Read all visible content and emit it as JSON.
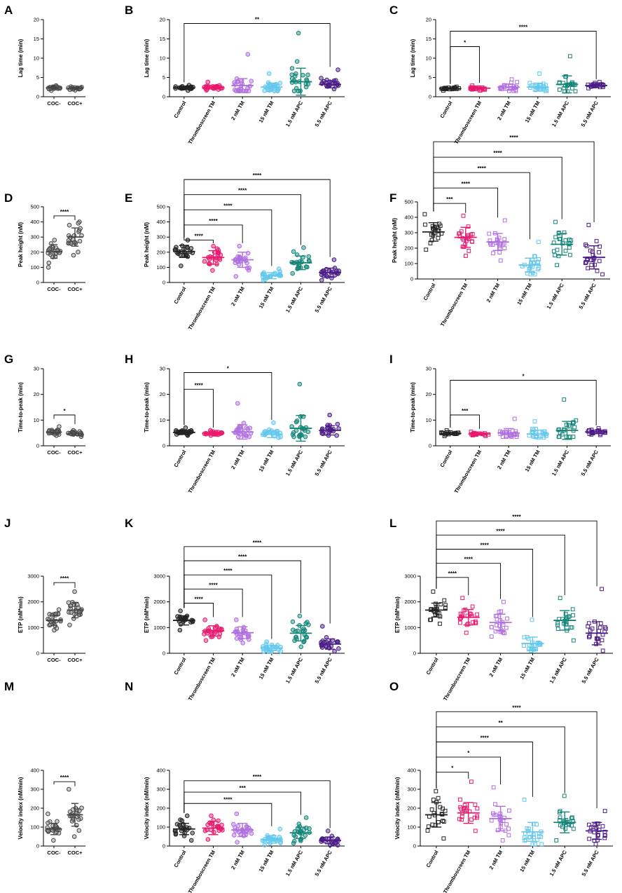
{
  "colors": {
    "control": "#222222",
    "thromboscreen_tm": "#e8196e",
    "tm_2nm": "#b06ee0",
    "tm_15nm": "#63c8ec",
    "apc_1_5nm": "#138577",
    "apc_5_5nm": "#4b1c86",
    "coc": "#444444",
    "coc_fill": "#8c8c8c"
  },
  "chart_data": [
    {
      "id": "A",
      "letter": "A",
      "type": "scatter",
      "panel_kind": "coc",
      "marker": "circle",
      "ylabel": "Lag time (min)",
      "ylim": [
        0,
        20
      ],
      "yticks": [
        0,
        5,
        10,
        15,
        20
      ],
      "yticklabels": [
        "0",
        "5",
        "10",
        "15",
        "20"
      ],
      "categories": [
        "COC-",
        "COC+"
      ],
      "groups": [
        {
          "mean": 2.3,
          "sd": 0.3,
          "min": 1.6,
          "max": 2.9
        },
        {
          "mean": 2.2,
          "sd": 0.25,
          "min": 1.7,
          "max": 2.6
        }
      ],
      "brackets": []
    },
    {
      "id": "B",
      "letter": "B",
      "type": "scatter",
      "panel_kind": "treat",
      "marker": "circle",
      "ylabel": "Lag time (min)",
      "ylim": [
        0,
        20
      ],
      "yticks": [
        0,
        5,
        10,
        15,
        20
      ],
      "yticklabels": [
        "0",
        "5",
        "10",
        "15",
        "20"
      ],
      "categories": [
        "Control",
        "Thromboscreen TM",
        "2 nM TM",
        "15 nM TM",
        "1.5 nM APC",
        "5.5 nM APC"
      ],
      "groups": [
        {
          "mean": 2.3,
          "sd": 0.3,
          "min": 1.6,
          "max": 3.0
        },
        {
          "mean": 2.4,
          "sd": 0.4,
          "min": 1.7,
          "max": 3.8
        },
        {
          "mean": 2.9,
          "sd": 1.8,
          "min": 1.5,
          "max": 11.0
        },
        {
          "mean": 2.5,
          "sd": 1.0,
          "min": 1.5,
          "max": 6.0
        },
        {
          "mean": 3.9,
          "sd": 3.5,
          "min": 1.5,
          "max": 16.5
        },
        {
          "mean": 3.2,
          "sd": 0.9,
          "min": 2.0,
          "max": 7.0
        }
      ],
      "brackets": [
        {
          "to": 5,
          "label": "**",
          "y": 19
        }
      ]
    },
    {
      "id": "C",
      "letter": "C",
      "type": "scatter",
      "panel_kind": "treat",
      "marker": "square",
      "ylabel": "Lag time (min)",
      "ylim": [
        0,
        20
      ],
      "yticks": [
        0,
        5,
        10,
        15,
        20
      ],
      "yticklabels": [
        "0",
        "5",
        "10",
        "15",
        "20"
      ],
      "categories": [
        "Control",
        "Thromboscreen TM",
        "2 nM TM",
        "15 nM TM",
        "1.5 nM APC",
        "5.5 nM APC"
      ],
      "groups": [
        {
          "mean": 2.1,
          "sd": 0.2,
          "min": 1.6,
          "max": 2.6
        },
        {
          "mean": 2.2,
          "sd": 0.3,
          "min": 1.6,
          "max": 2.9
        },
        {
          "mean": 2.5,
          "sd": 0.8,
          "min": 1.5,
          "max": 4.5
        },
        {
          "mean": 2.5,
          "sd": 1.0,
          "min": 1.5,
          "max": 6.0
        },
        {
          "mean": 3.2,
          "sd": 2.2,
          "min": 1.4,
          "max": 10.5
        },
        {
          "mean": 2.9,
          "sd": 0.4,
          "min": 2.2,
          "max": 3.8
        }
      ],
      "brackets": [
        {
          "to": 1,
          "label": "*",
          "y": 13
        },
        {
          "to": 5,
          "label": "****",
          "y": 17
        }
      ]
    },
    {
      "id": "D",
      "letter": "D",
      "type": "scatter",
      "panel_kind": "coc",
      "marker": "circle",
      "ylabel": "Peak height (nM)",
      "ylim": [
        0,
        500
      ],
      "yticks": [
        0,
        100,
        200,
        300,
        400,
        500
      ],
      "yticklabels": [
        "0",
        "100",
        "200",
        "300",
        "400",
        "500"
      ],
      "categories": [
        "COC-",
        "COC+"
      ],
      "groups": [
        {
          "mean": 205,
          "sd": 45,
          "min": 100,
          "max": 280
        },
        {
          "mean": 300,
          "sd": 60,
          "min": 180,
          "max": 400
        }
      ],
      "brackets": [
        {
          "from": 0,
          "to": 1,
          "label": "****",
          "y": 440
        }
      ]
    },
    {
      "id": "E",
      "letter": "E",
      "type": "scatter",
      "panel_kind": "treat",
      "marker": "circle",
      "ylabel": "Peak height (nM)",
      "ylim": [
        0,
        500
      ],
      "yticks": [
        0,
        100,
        200,
        300,
        400,
        500
      ],
      "yticklabels": [
        "0",
        "100",
        "200",
        "300",
        "400",
        "500"
      ],
      "categories": [
        "Control",
        "Thromboscreen TM",
        "2 nM TM",
        "15 nM TM",
        "1.5 nM APC",
        "5.5 nM APC"
      ],
      "groups": [
        {
          "mean": 205,
          "sd": 40,
          "min": 110,
          "max": 280
        },
        {
          "mean": 165,
          "sd": 45,
          "min": 80,
          "max": 240
        },
        {
          "mean": 150,
          "sd": 50,
          "min": 40,
          "max": 240
        },
        {
          "mean": 45,
          "sd": 20,
          "min": 15,
          "max": 90
        },
        {
          "mean": 130,
          "sd": 45,
          "min": 60,
          "max": 230
        },
        {
          "mean": 65,
          "sd": 30,
          "min": 15,
          "max": 150
        }
      ],
      "brackets": [
        {
          "to": 1,
          "label": "****",
          "y": 280
        },
        {
          "to": 2,
          "label": "****",
          "y": 380
        },
        {
          "to": 3,
          "label": "****",
          "y": 480
        },
        {
          "to": 4,
          "label": "****",
          "y": 580
        },
        {
          "to": 5,
          "label": "****",
          "y": 680
        }
      ]
    },
    {
      "id": "F",
      "letter": "F",
      "type": "scatter",
      "panel_kind": "treat",
      "marker": "square",
      "ylabel": "Peak height (nM)",
      "ylim": [
        0,
        500
      ],
      "yticks": [
        0,
        100,
        200,
        300,
        400,
        500
      ],
      "yticklabels": [
        "0",
        "100",
        "200",
        "300",
        "400",
        "500"
      ],
      "categories": [
        "Control",
        "Thromboscreen TM",
        "2 nM TM",
        "15 nM TM",
        "1.5 nM APC",
        "5.5 nM APC"
      ],
      "groups": [
        {
          "mean": 305,
          "sd": 60,
          "min": 190,
          "max": 420
        },
        {
          "mean": 270,
          "sd": 65,
          "min": 150,
          "max": 410
        },
        {
          "mean": 240,
          "sd": 55,
          "min": 120,
          "max": 380
        },
        {
          "mean": 90,
          "sd": 45,
          "min": 30,
          "max": 240
        },
        {
          "mean": 225,
          "sd": 70,
          "min": 90,
          "max": 370
        },
        {
          "mean": 140,
          "sd": 75,
          "min": 30,
          "max": 350
        }
      ],
      "brackets": [
        {
          "to": 1,
          "label": "***",
          "y": 490
        },
        {
          "to": 2,
          "label": "****",
          "y": 590
        },
        {
          "to": 3,
          "label": "****",
          "y": 690
        },
        {
          "to": 4,
          "label": "****",
          "y": 790
        },
        {
          "to": 5,
          "label": "****",
          "y": 890
        }
      ]
    },
    {
      "id": "G",
      "letter": "G",
      "type": "scatter",
      "panel_kind": "coc",
      "marker": "circle",
      "ylabel": "Time-to-peak (min)",
      "ylim": [
        0,
        30
      ],
      "yticks": [
        0,
        10,
        20,
        30
      ],
      "yticklabels": [
        "0",
        "10",
        "20",
        "30"
      ],
      "categories": [
        "COC-",
        "COC+"
      ],
      "groups": [
        {
          "mean": 5.3,
          "sd": 0.8,
          "min": 4.0,
          "max": 7.5
        },
        {
          "mean": 4.7,
          "sd": 0.6,
          "min": 3.6,
          "max": 6.0
        }
      ],
      "brackets": [
        {
          "from": 0,
          "to": 1,
          "label": "*",
          "y": 12
        }
      ]
    },
    {
      "id": "H",
      "letter": "H",
      "type": "scatter",
      "panel_kind": "treat",
      "marker": "circle",
      "ylabel": "Time-to-peak (min)",
      "ylim": [
        0,
        30
      ],
      "yticks": [
        0,
        10,
        20,
        30
      ],
      "yticklabels": [
        "0",
        "10",
        "20",
        "30"
      ],
      "categories": [
        "Control",
        "Thromboscreen TM",
        "2 nM TM",
        "15 nM TM",
        "1.5 nM APC",
        "5.5 nM APC"
      ],
      "groups": [
        {
          "mean": 5.2,
          "sd": 0.8,
          "min": 4.0,
          "max": 7.0
        },
        {
          "mean": 4.8,
          "sd": 0.5,
          "min": 4.0,
          "max": 6.0
        },
        {
          "mean": 5.4,
          "sd": 2.8,
          "min": 3.5,
          "max": 16.5
        },
        {
          "mean": 4.5,
          "sd": 1.3,
          "min": 3.2,
          "max": 9.0
        },
        {
          "mean": 6.8,
          "sd": 5.0,
          "min": 3.5,
          "max": 24.0
        },
        {
          "mean": 6.0,
          "sd": 1.8,
          "min": 4.0,
          "max": 12.0
        }
      ],
      "brackets": [
        {
          "to": 1,
          "label": "****",
          "y": 22
        },
        {
          "to": 3,
          "label": "*",
          "y": 28.5
        }
      ]
    },
    {
      "id": "I",
      "letter": "I",
      "type": "scatter",
      "panel_kind": "treat",
      "marker": "square",
      "ylabel": "Time-to-peak (min)",
      "ylim": [
        0,
        30
      ],
      "yticks": [
        0,
        10,
        20,
        30
      ],
      "yticklabels": [
        "0",
        "10",
        "20",
        "30"
      ],
      "categories": [
        "Control",
        "Thromboscreen TM",
        "2 nM TM",
        "15 nM TM",
        "1.5 nM APC",
        "5.5 nM APC"
      ],
      "groups": [
        {
          "mean": 4.8,
          "sd": 0.5,
          "min": 3.8,
          "max": 6.0
        },
        {
          "mean": 4.6,
          "sd": 0.4,
          "min": 3.8,
          "max": 5.5
        },
        {
          "mean": 5.0,
          "sd": 1.7,
          "min": 3.5,
          "max": 10.5
        },
        {
          "mean": 4.6,
          "sd": 1.5,
          "min": 3.2,
          "max": 9.5
        },
        {
          "mean": 6.0,
          "sd": 3.5,
          "min": 3.5,
          "max": 18.0
        },
        {
          "mean": 5.4,
          "sd": 0.7,
          "min": 4.2,
          "max": 6.8
        }
      ],
      "brackets": [
        {
          "to": 1,
          "label": "***",
          "y": 12
        },
        {
          "to": 5,
          "label": "*",
          "y": 25.5
        }
      ]
    },
    {
      "id": "J",
      "letter": "J",
      "type": "scatter",
      "panel_kind": "coc",
      "marker": "circle",
      "ylabel": "ETP (nM*min)",
      "ylim": [
        0,
        3000
      ],
      "yticks": [
        0,
        1000,
        2000,
        3000
      ],
      "yticklabels": [
        "0",
        "1000",
        "2000",
        "3000"
      ],
      "categories": [
        "COC-",
        "COC+"
      ],
      "groups": [
        {
          "mean": 1280,
          "sd": 200,
          "min": 900,
          "max": 1700
        },
        {
          "mean": 1680,
          "sd": 300,
          "min": 1100,
          "max": 2400
        }
      ],
      "brackets": [
        {
          "from": 0,
          "to": 1,
          "label": "****",
          "y": 2750
        }
      ]
    },
    {
      "id": "K",
      "letter": "K",
      "type": "scatter",
      "panel_kind": "treat",
      "marker": "circle",
      "ylabel": "ETP (nM*min)",
      "ylim": [
        0,
        3000
      ],
      "yticks": [
        0,
        1000,
        2000,
        3000
      ],
      "yticklabels": [
        "0",
        "1000",
        "2000",
        "3000"
      ],
      "categories": [
        "Control",
        "Thromboscreen TM",
        "2 nM TM",
        "15 nM TM",
        "1.5 nM APC",
        "5.5 nM APC"
      ],
      "groups": [
        {
          "mean": 1280,
          "sd": 180,
          "min": 900,
          "max": 1650
        },
        {
          "mean": 870,
          "sd": 200,
          "min": 500,
          "max": 1300
        },
        {
          "mean": 800,
          "sd": 230,
          "min": 400,
          "max": 1300
        },
        {
          "mean": 200,
          "sd": 100,
          "min": 60,
          "max": 450
        },
        {
          "mean": 780,
          "sd": 300,
          "min": 250,
          "max": 1450
        },
        {
          "mean": 360,
          "sd": 200,
          "min": 80,
          "max": 1050
        }
      ],
      "brackets": [
        {
          "to": 1,
          "label": "****",
          "y": 1950
        },
        {
          "to": 2,
          "label": "****",
          "y": 2500
        },
        {
          "to": 3,
          "label": "****",
          "y": 3050
        },
        {
          "to": 4,
          "label": "****",
          "y": 3600
        },
        {
          "to": 5,
          "label": "****",
          "y": 4150
        }
      ]
    },
    {
      "id": "L",
      "letter": "L",
      "type": "scatter",
      "panel_kind": "treat",
      "marker": "square",
      "ylabel": "ETP (nM*min)",
      "ylim": [
        0,
        3000
      ],
      "yticks": [
        0,
        1000,
        2000,
        3000
      ],
      "yticklabels": [
        "0",
        "1000",
        "2000",
        "3000"
      ],
      "categories": [
        "Control",
        "Thromboscreen TM",
        "2 nM TM",
        "15 nM TM",
        "1.5 nM APC",
        "5.5 nM APC"
      ],
      "groups": [
        {
          "mean": 1680,
          "sd": 270,
          "min": 1150,
          "max": 2400
        },
        {
          "mean": 1400,
          "sd": 300,
          "min": 800,
          "max": 2150
        },
        {
          "mean": 1200,
          "sd": 320,
          "min": 650,
          "max": 2000
        },
        {
          "mean": 380,
          "sd": 250,
          "min": 100,
          "max": 1300
        },
        {
          "mean": 1280,
          "sd": 380,
          "min": 500,
          "max": 2150
        },
        {
          "mean": 780,
          "sd": 450,
          "min": 100,
          "max": 2500
        }
      ],
      "brackets": [
        {
          "to": 1,
          "label": "****",
          "y": 2950
        },
        {
          "to": 2,
          "label": "****",
          "y": 3500
        },
        {
          "to": 3,
          "label": "****",
          "y": 4050
        },
        {
          "to": 4,
          "label": "****",
          "y": 4600
        },
        {
          "to": 5,
          "label": "****",
          "y": 5150
        }
      ]
    },
    {
      "id": "M",
      "letter": "M",
      "type": "scatter",
      "panel_kind": "coc",
      "marker": "circle",
      "ylabel": "Velocity index (nM/min)",
      "ylim": [
        0,
        400
      ],
      "yticks": [
        0,
        100,
        200,
        300,
        400
      ],
      "yticklabels": [
        "0",
        "100",
        "200",
        "300",
        "400"
      ],
      "categories": [
        "COC-",
        "COC+"
      ],
      "groups": [
        {
          "mean": 90,
          "sd": 30,
          "min": 30,
          "max": 170
        },
        {
          "mean": 165,
          "sd": 60,
          "min": 50,
          "max": 300
        }
      ],
      "brackets": [
        {
          "from": 0,
          "to": 1,
          "label": "****",
          "y": 340
        }
      ]
    },
    {
      "id": "N",
      "letter": "N",
      "type": "scatter",
      "panel_kind": "treat",
      "marker": "circle",
      "ylabel": "Velocity index (nM/min)",
      "ylim": [
        0,
        400
      ],
      "yticks": [
        0,
        100,
        200,
        300,
        400
      ],
      "yticklabels": [
        "0",
        "100",
        "200",
        "300",
        "400"
      ],
      "categories": [
        "Control",
        "Thromboscreen TM",
        "2 nM TM",
        "15 nM TM",
        "1.5 nM APC",
        "5.5 nM APC"
      ],
      "groups": [
        {
          "mean": 90,
          "sd": 30,
          "min": 30,
          "max": 160
        },
        {
          "mean": 95,
          "sd": 35,
          "min": 35,
          "max": 160
        },
        {
          "mean": 85,
          "sd": 35,
          "min": 20,
          "max": 170
        },
        {
          "mean": 35,
          "sd": 20,
          "min": 5,
          "max": 90
        },
        {
          "mean": 70,
          "sd": 30,
          "min": 15,
          "max": 150
        },
        {
          "mean": 30,
          "sd": 18,
          "min": 5,
          "max": 80
        }
      ],
      "brackets": [
        {
          "to": 3,
          "label": "****",
          "y": 225
        },
        {
          "to": 4,
          "label": "***",
          "y": 285
        },
        {
          "to": 5,
          "label": "****",
          "y": 345
        }
      ]
    },
    {
      "id": "O",
      "letter": "O",
      "type": "scatter",
      "panel_kind": "treat",
      "marker": "square",
      "ylabel": "Velocity index (nM/min)",
      "ylim": [
        0,
        400
      ],
      "yticks": [
        0,
        100,
        200,
        300,
        400
      ],
      "yticklabels": [
        "0",
        "100",
        "200",
        "300",
        "400"
      ],
      "categories": [
        "Control",
        "Thromboscreen TM",
        "2 nM TM",
        "15 nM TM",
        "1.5 nM APC",
        "5.5 nM APC"
      ],
      "groups": [
        {
          "mean": 165,
          "sd": 65,
          "min": 40,
          "max": 290
        },
        {
          "mean": 175,
          "sd": 55,
          "min": 80,
          "max": 340
        },
        {
          "mean": 145,
          "sd": 65,
          "min": 30,
          "max": 310
        },
        {
          "mean": 75,
          "sd": 50,
          "min": 10,
          "max": 245
        },
        {
          "mean": 125,
          "sd": 55,
          "min": 30,
          "max": 265
        },
        {
          "mean": 80,
          "sd": 45,
          "min": 10,
          "max": 185
        }
      ],
      "brackets": [
        {
          "to": 1,
          "label": "*",
          "y": 390
        },
        {
          "to": 2,
          "label": "*",
          "y": 470
        },
        {
          "to": 3,
          "label": "****",
          "y": 550
        },
        {
          "to": 4,
          "label": "**",
          "y": 630
        },
        {
          "to": 5,
          "label": "****",
          "y": 710
        }
      ]
    }
  ]
}
